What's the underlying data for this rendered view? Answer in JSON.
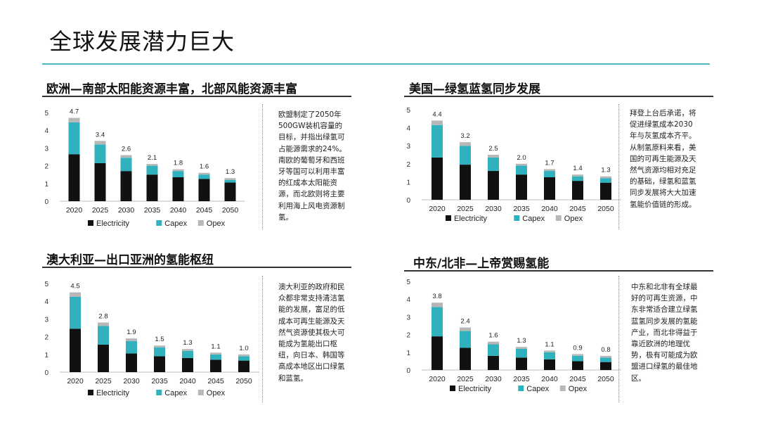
{
  "page": {
    "title": "全球发展潜力巨大"
  },
  "legend": [
    {
      "name": "Electricity",
      "color": "#111111"
    },
    {
      "name": "Capex",
      "color": "#2fb2bd"
    },
    {
      "name": "Opex",
      "color": "#b7b7b7"
    }
  ],
  "panels": [
    {
      "title": "欧洲—南部太阳能资源丰富，北部风能资源丰富",
      "note": "欧盟制定了2050年500GW装机容量的目标，并指出绿氢可占能源需求的24%。南欧的葡萄牙和西班牙等国可以利用丰富的红成本太阳能资源，而北欧则将主要利用海上风电资源制氢。"
    },
    {
      "title": "美国—绿氢蓝氢同步发展",
      "note": "拜登上台后承诺，将促进绿氢成本2030年与灰氢成本齐平。从制氢原料来看，美国的可再生能源及天然气资源均相对充足的基础，绿氢和蓝氢同步发展将大大加速氢能价值链的形成。"
    },
    {
      "title": "澳大利亚—出口亚洲的氢能枢纽",
      "note": "澳大利亚的政府和民众都非常支持清洁氢能的发展，富足的低成本可再生能源及天然气资源使其极大可能成为氢能出口枢纽，向日本、韩国等高成本地区出口绿氢和蓝氢。"
    },
    {
      "title": "中东/北非—上帝赏赐氢能",
      "note": "中东和北非有全球最好的可再生资源，中东非常适合建立绿氢蓝氢同步发展的氢能产业，而北非得益于靠近欧洲的地理优势，极有可能成为欧盟进口绿氢的最佳地区。"
    }
  ],
  "chart_data": [
    {
      "type": "bar",
      "stacked": true,
      "title": "",
      "xlabel": "",
      "ylabel": "",
      "ylim": [
        0,
        5
      ],
      "yticks": [
        "0",
        "1",
        "2",
        "3",
        "4",
        "5"
      ],
      "categories": [
        "2020",
        "2025",
        "2030",
        "2035",
        "2040",
        "2045",
        "2050"
      ],
      "totals": [
        "4.7",
        "3.4",
        "2.6",
        "2.1",
        "1.8",
        "1.6",
        "1.3"
      ],
      "series": [
        {
          "name": "Electricity",
          "values": [
            2.65,
            2.15,
            1.7,
            1.5,
            1.35,
            1.25,
            1.05
          ]
        },
        {
          "name": "Capex",
          "values": [
            1.8,
            1.05,
            0.75,
            0.5,
            0.35,
            0.25,
            0.15
          ]
        },
        {
          "name": "Opex",
          "values": [
            0.25,
            0.2,
            0.15,
            0.1,
            0.1,
            0.1,
            0.1
          ]
        }
      ]
    },
    {
      "type": "bar",
      "stacked": true,
      "title": "",
      "xlabel": "",
      "ylabel": "",
      "ylim": [
        0,
        5
      ],
      "yticks": [
        "0",
        "1",
        "2",
        "3",
        "4",
        "5"
      ],
      "categories": [
        "2020",
        "2025",
        "2030",
        "2035",
        "2040",
        "2045",
        "2050"
      ],
      "totals": [
        "4.4",
        "3.2",
        "2.5",
        "2.0",
        "1.7",
        "1.4",
        "1.3"
      ],
      "series": [
        {
          "name": "Electricity",
          "values": [
            2.35,
            1.95,
            1.6,
            1.4,
            1.25,
            1.05,
            0.95
          ]
        },
        {
          "name": "Capex",
          "values": [
            1.8,
            1.05,
            0.75,
            0.5,
            0.35,
            0.25,
            0.25
          ]
        },
        {
          "name": "Opex",
          "values": [
            0.25,
            0.2,
            0.15,
            0.1,
            0.1,
            0.1,
            0.1
          ]
        }
      ]
    },
    {
      "type": "bar",
      "stacked": true,
      "title": "",
      "xlabel": "",
      "ylabel": "",
      "ylim": [
        0,
        5
      ],
      "yticks": [
        "0",
        "1",
        "2",
        "3",
        "4",
        "5"
      ],
      "categories": [
        "2020",
        "2025",
        "2030",
        "2035",
        "2040",
        "2045",
        "2050"
      ],
      "totals": [
        "4.5",
        "2.8",
        "1.9",
        "1.5",
        "1.3",
        "1.1",
        "1.0"
      ],
      "series": [
        {
          "name": "Electricity",
          "values": [
            2.45,
            1.55,
            1.05,
            0.9,
            0.8,
            0.7,
            0.65
          ]
        },
        {
          "name": "Capex",
          "values": [
            1.8,
            1.05,
            0.7,
            0.5,
            0.4,
            0.3,
            0.25
          ]
        },
        {
          "name": "Opex",
          "values": [
            0.25,
            0.2,
            0.15,
            0.1,
            0.1,
            0.1,
            0.1
          ]
        }
      ]
    },
    {
      "type": "bar",
      "stacked": true,
      "title": "",
      "xlabel": "",
      "ylabel": "",
      "ylim": [
        0,
        5
      ],
      "yticks": [
        "0",
        "1",
        "2",
        "3",
        "4",
        "5"
      ],
      "categories": [
        "2020",
        "2025",
        "2030",
        "2035",
        "2040",
        "2045",
        "2050"
      ],
      "totals": [
        "3.8",
        "2.4",
        "1.6",
        "1.3",
        "1.1",
        "0.9",
        "0.8"
      ],
      "series": [
        {
          "name": "Electricity",
          "values": [
            1.9,
            1.25,
            0.8,
            0.7,
            0.6,
            0.5,
            0.45
          ]
        },
        {
          "name": "Capex",
          "values": [
            1.65,
            0.95,
            0.65,
            0.5,
            0.4,
            0.3,
            0.25
          ]
        },
        {
          "name": "Opex",
          "values": [
            0.25,
            0.2,
            0.15,
            0.1,
            0.1,
            0.1,
            0.1
          ]
        }
      ]
    }
  ]
}
